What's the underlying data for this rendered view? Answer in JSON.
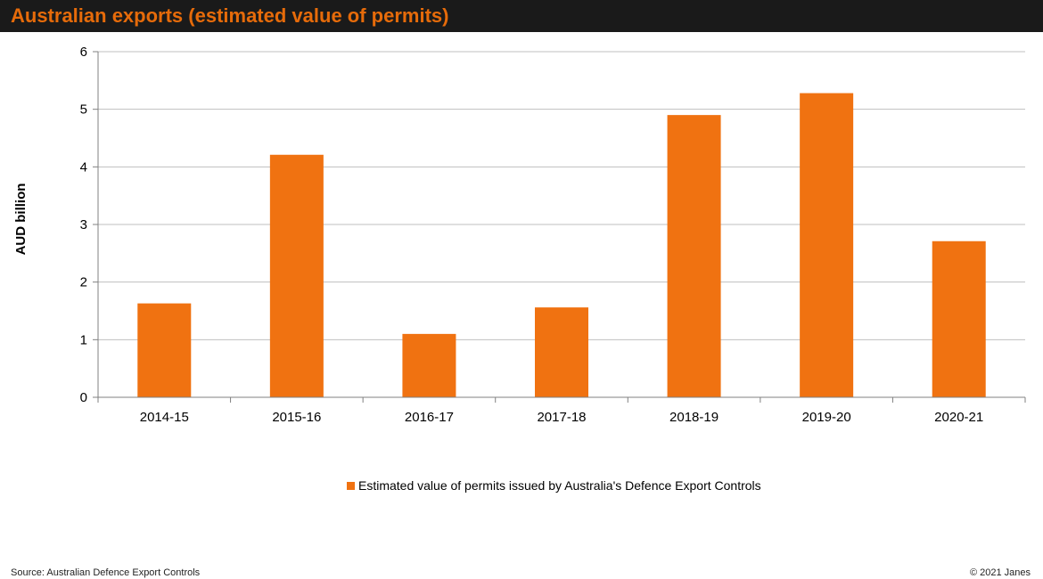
{
  "header": {
    "title": "Australian exports (estimated value of permits)"
  },
  "colors": {
    "bar": "#f07211",
    "header_bg": "#1a1a1a",
    "header_text": "#e66b0a",
    "grid": "#bfbfbf"
  },
  "chart_data": {
    "type": "bar",
    "title": "Australian exports (estimated value of permits)",
    "xlabel": "",
    "ylabel": "AUD billion",
    "categories": [
      "2014-15",
      "2015-16",
      "2016-17",
      "2017-18",
      "2018-19",
      "2019-20",
      "2020-21"
    ],
    "series": [
      {
        "name": "Estimated value of permits issued by Australia's Defence Export Controls",
        "values": [
          1.63,
          4.21,
          1.1,
          1.56,
          4.9,
          5.28,
          2.71
        ]
      }
    ],
    "ylim": [
      0,
      6
    ],
    "yticks": [
      0,
      1,
      2,
      3,
      4,
      5,
      6
    ],
    "grid": true,
    "legend": "bottom-center"
  },
  "footer": {
    "source": "Source: Australian Defence Export Controls",
    "copyright": "© 2021 Janes"
  }
}
